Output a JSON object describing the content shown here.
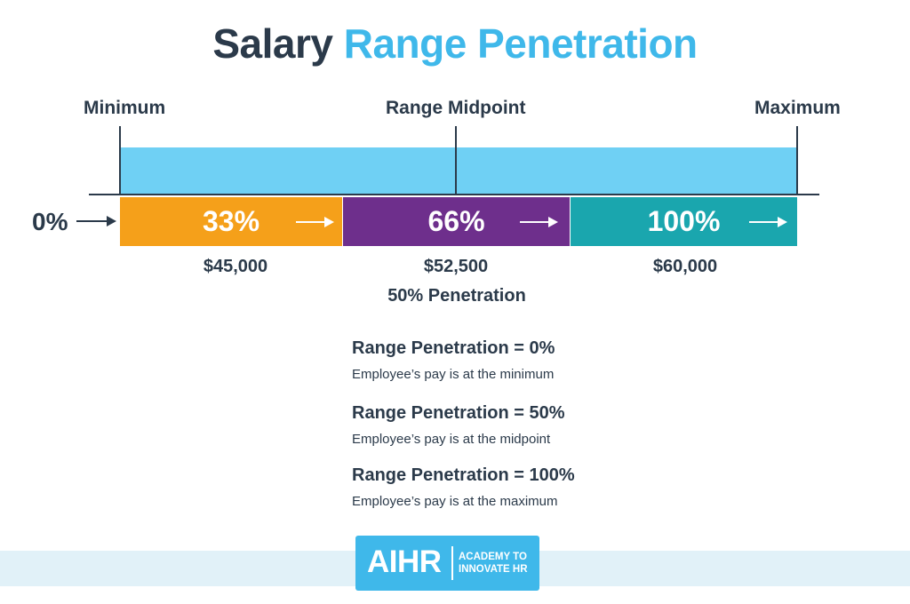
{
  "title": {
    "part1": "Salary",
    "part2": "Range Penetration"
  },
  "colors": {
    "dark": "#2b3a4a",
    "title_accent": "#3fb8ea",
    "range_bar": "#6fd0f4",
    "segment_1": "#f5a01a",
    "segment_2": "#6e2f8c",
    "segment_3": "#1aa6ae",
    "footer_band": "#e1f1f8"
  },
  "range": {
    "minimum_label": "Minimum",
    "midpoint_label": "Range Midpoint",
    "maximum_label": "Maximum",
    "start_label": "0%"
  },
  "segments": [
    {
      "label": "33%",
      "amount": "$45,000",
      "icon": "arrow-right-icon"
    },
    {
      "label": "66%",
      "amount": "$52,500",
      "icon": "arrow-right-icon"
    },
    {
      "label": "100%",
      "amount": "$60,000",
      "icon": "arrow-right-icon"
    }
  ],
  "midpoint_note": "50% Penetration",
  "definitions": [
    {
      "title": "Range Penetration = 0%",
      "description": "Employee’s pay is at the minimum"
    },
    {
      "title": "Range Penetration = 50%",
      "description": "Employee’s pay is at the midpoint"
    },
    {
      "title": "Range Penetration = 100%",
      "description": "Employee’s pay is at the maximum"
    }
  ],
  "logo": {
    "mark": "AIHR",
    "line1": "ACADEMY TO",
    "line2": "INNOVATE HR"
  }
}
